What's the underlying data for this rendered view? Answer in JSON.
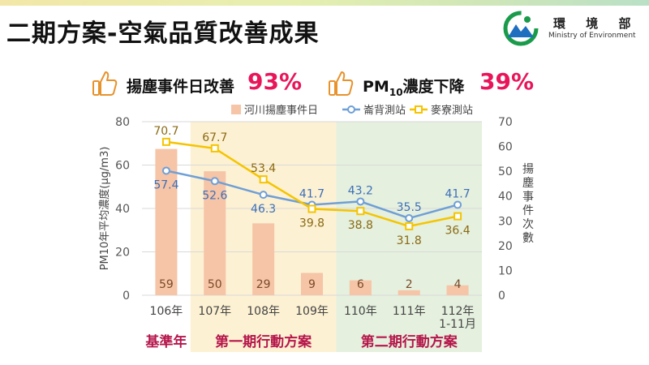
{
  "page_title": "二期方案-空氣品質改善成果",
  "logo": {
    "name": "環 境 部",
    "english": "Ministry of Environment"
  },
  "highlights": [
    {
      "label": "揚塵事件日改善",
      "value": "93%",
      "icon": "thumbs-up-icon"
    },
    {
      "label_prefix": "PM",
      "label_sub": "10",
      "label_suffix": "濃度下降",
      "value": "39%",
      "icon": "thumbs-up-icon"
    }
  ],
  "chart_data": {
    "type": "bar",
    "categories": [
      "106年",
      "107年",
      "108年",
      "109年",
      "110年",
      "111年",
      "112年 1-11月"
    ],
    "series": [
      {
        "name": "河川揚塵事件日",
        "kind": "bar",
        "axis": "right",
        "color": "#f6c4a6",
        "values": [
          59,
          50,
          29,
          9,
          6,
          2,
          4
        ]
      },
      {
        "name": "崙背測站",
        "kind": "line",
        "axis": "left",
        "color": "#6f9fd6",
        "values": [
          57.4,
          52.6,
          46.3,
          41.7,
          43.2,
          35.5,
          41.7
        ]
      },
      {
        "name": "麥寮測站",
        "kind": "line",
        "axis": "left",
        "color": "#f5c400",
        "values": [
          70.7,
          67.7,
          53.4,
          39.8,
          38.8,
          31.8,
          36.4
        ]
      }
    ],
    "ylabel": "PM10年平均濃度(μg/m3)",
    "ylim": [
      0,
      80
    ],
    "yticks": [
      0,
      20,
      40,
      60,
      80
    ],
    "y2label": "揚塵事件次數",
    "y2lim": [
      0,
      70
    ],
    "y2ticks": [
      0,
      10,
      20,
      30,
      40,
      50,
      60,
      70
    ],
    "legend": "top",
    "periods": [
      {
        "label": "基準年",
        "from": 0,
        "to": 0,
        "color": "#ffffff",
        "label_color": "#b5164b"
      },
      {
        "label": "第一期行動方案",
        "from": 1,
        "to": 3,
        "color": "#fdf1d3",
        "label_color": "#b5164b"
      },
      {
        "label": "第二期行動方案",
        "from": 4,
        "to": 6,
        "color": "#e5f0de",
        "label_color": "#b5164b"
      }
    ],
    "label_colors": {
      "lunbei": "#3d6fb8",
      "mailiao": "#8a6a14",
      "bar": "#7a4a2a"
    }
  }
}
